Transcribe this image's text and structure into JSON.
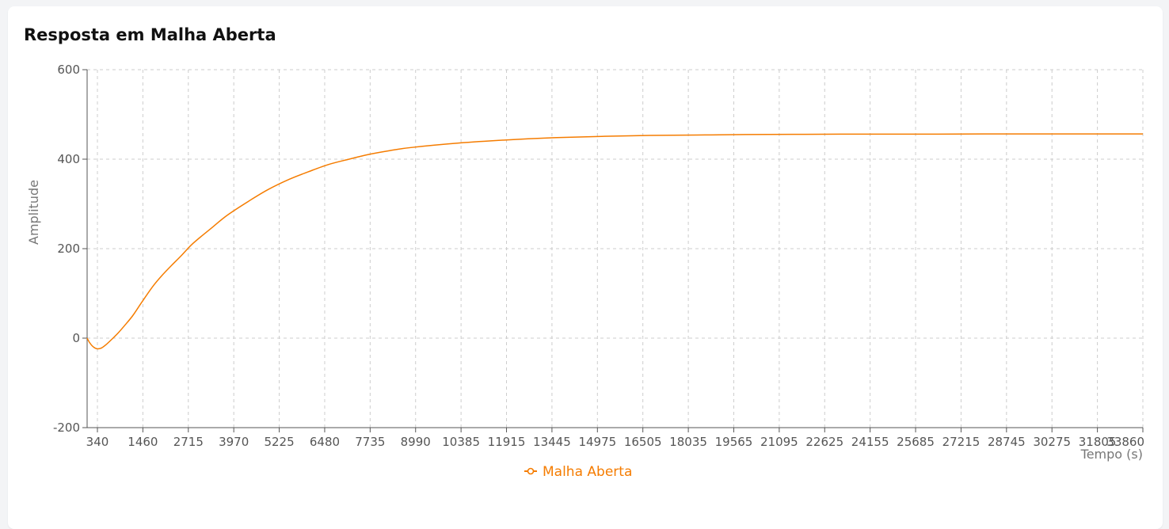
{
  "card": {
    "title": "Resposta em Malha Aberta"
  },
  "chart_data": {
    "type": "line",
    "title": "Resposta em Malha Aberta",
    "xlabel": "Tempo (s)",
    "ylabel": "Amplitude",
    "x_tick_labels": [
      "340",
      "1460",
      "2715",
      "3970",
      "5225",
      "6480",
      "7735",
      "8990",
      "10385",
      "11915",
      "13445",
      "14975",
      "16505",
      "18035",
      "19565",
      "21095",
      "22625",
      "24155",
      "25685",
      "27215",
      "28745",
      "30275",
      "31805",
      "33860"
    ],
    "y_ticks": [
      -200,
      0,
      200,
      400,
      600
    ],
    "ylim": [
      -200,
      600
    ],
    "grid": true,
    "legend_position": "bottom-center",
    "series": [
      {
        "name": "Malha Aberta",
        "color": "#f57c00",
        "points": [
          {
            "t": 0,
            "y": 0
          },
          {
            "t": 80,
            "y": -10
          },
          {
            "t": 160,
            "y": -17
          },
          {
            "t": 250,
            "y": -22
          },
          {
            "t": 340,
            "y": -24
          },
          {
            "t": 460,
            "y": -22
          },
          {
            "t": 600,
            "y": -15
          },
          {
            "t": 800,
            "y": -2
          },
          {
            "t": 1000,
            "y": 12
          },
          {
            "t": 1200,
            "y": 28
          },
          {
            "t": 1460,
            "y": 50
          },
          {
            "t": 1750,
            "y": 80
          },
          {
            "t": 2100,
            "y": 115
          },
          {
            "t": 2400,
            "y": 140
          },
          {
            "t": 2715,
            "y": 163
          },
          {
            "t": 3000,
            "y": 183
          },
          {
            "t": 3400,
            "y": 212
          },
          {
            "t": 3970,
            "y": 245
          },
          {
            "t": 4500,
            "y": 275
          },
          {
            "t": 5225,
            "y": 308
          },
          {
            "t": 5800,
            "y": 332
          },
          {
            "t": 6480,
            "y": 355
          },
          {
            "t": 7100,
            "y": 372
          },
          {
            "t": 7735,
            "y": 388
          },
          {
            "t": 8400,
            "y": 400
          },
          {
            "t": 8990,
            "y": 410
          },
          {
            "t": 9700,
            "y": 419
          },
          {
            "t": 10385,
            "y": 426
          },
          {
            "t": 11915,
            "y": 436
          },
          {
            "t": 13445,
            "y": 443
          },
          {
            "t": 14975,
            "y": 448
          },
          {
            "t": 16505,
            "y": 451
          },
          {
            "t": 18035,
            "y": 453
          },
          {
            "t": 19565,
            "y": 454
          },
          {
            "t": 21095,
            "y": 455
          },
          {
            "t": 22625,
            "y": 455.5
          },
          {
            "t": 24155,
            "y": 456
          },
          {
            "t": 25685,
            "y": 456
          },
          {
            "t": 27215,
            "y": 456
          },
          {
            "t": 28745,
            "y": 456.5
          },
          {
            "t": 30275,
            "y": 456.5
          },
          {
            "t": 31805,
            "y": 456.5
          },
          {
            "t": 33860,
            "y": 456.5
          }
        ]
      }
    ]
  }
}
